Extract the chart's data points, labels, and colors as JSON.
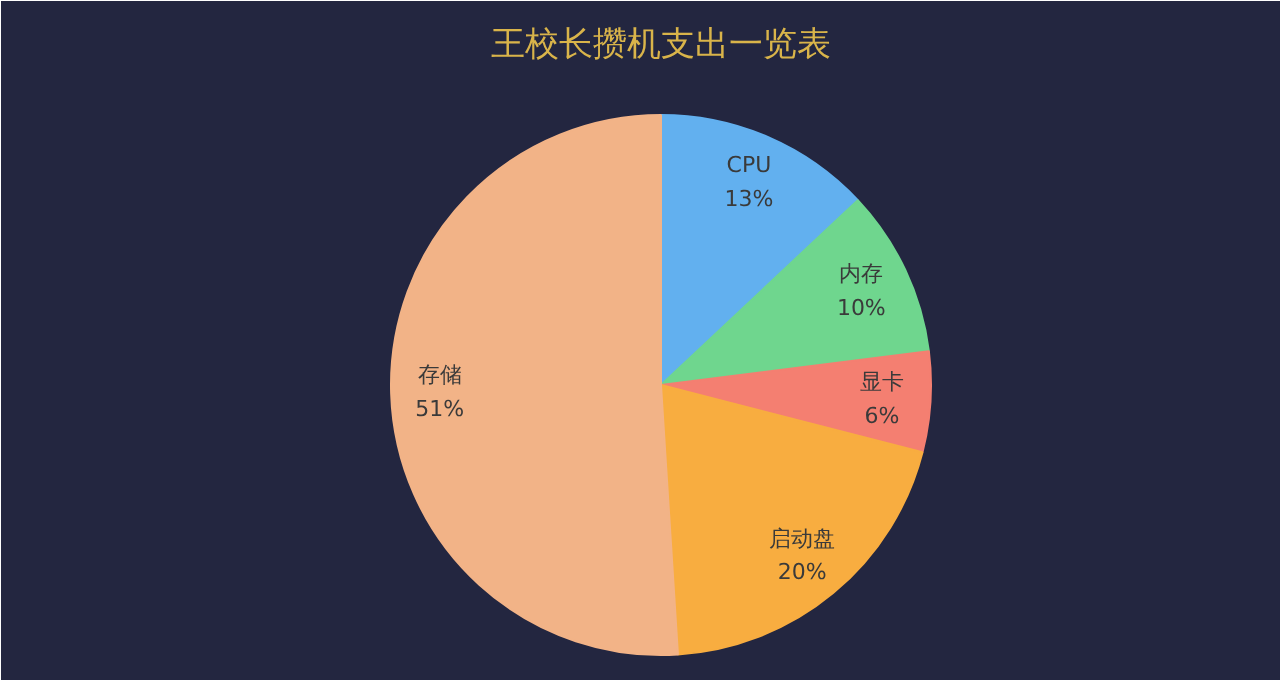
{
  "chart_data": {
    "type": "pie",
    "title": "王校长攒机支出一览表",
    "categories": [
      "CPU",
      "内存",
      "显卡",
      "启动盘",
      "存储"
    ],
    "values": [
      13,
      10,
      6,
      20,
      51
    ],
    "colors": [
      "#62b0ef",
      "#6fd68e",
      "#f47f71",
      "#f8ad40",
      "#f2b387"
    ],
    "value_labels": [
      "13%",
      "10%",
      "6%",
      "20%",
      "51%"
    ]
  }
}
